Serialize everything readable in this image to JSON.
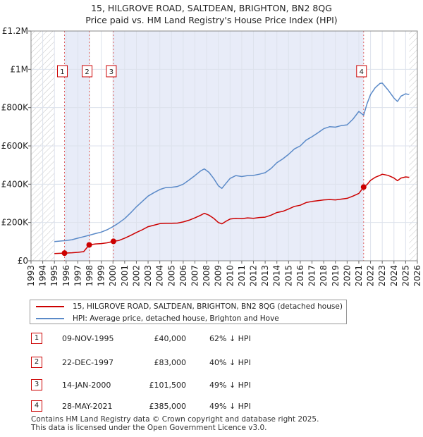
{
  "title": {
    "line1": "15, HILGROVE ROAD, SALTDEAN, BRIGHTON, BN2 8QG",
    "line2": "Price paid vs. HM Land Registry's House Price Index (HPI)"
  },
  "colors": {
    "price_line": "#cc0000",
    "hpi_line": "#5b8ac8",
    "shade": "#e8ecf8",
    "hatch": "#c0c0c0",
    "marker_line": "#e06060"
  },
  "chart_data": {
    "type": "line",
    "xlim": [
      1993,
      2026
    ],
    "ylim": [
      0,
      1200000
    ],
    "y_ticks": [
      {
        "value": 0,
        "label": "£0"
      },
      {
        "value": 200000,
        "label": "£200K"
      },
      {
        "value": 400000,
        "label": "£400K"
      },
      {
        "value": 600000,
        "label": "£600K"
      },
      {
        "value": 800000,
        "label": "£800K"
      },
      {
        "value": 1000000,
        "label": "£1M"
      },
      {
        "value": 1200000,
        "label": "£1.2M"
      }
    ],
    "x_ticks": [
      "1993",
      "1994",
      "1995",
      "1996",
      "1997",
      "1998",
      "1999",
      "2000",
      "2001",
      "2002",
      "2003",
      "2004",
      "2005",
      "2006",
      "2007",
      "2008",
      "2009",
      "2010",
      "2011",
      "2012",
      "2013",
      "2014",
      "2015",
      "2016",
      "2017",
      "2018",
      "2019",
      "2020",
      "2021",
      "2022",
      "2023",
      "2024",
      "2025",
      "2026"
    ],
    "data_start": 1995.0,
    "data_end": 2025.3,
    "series": [
      {
        "name": "15, HILGROVE ROAD, SALTDEAN, BRIGHTON, BN2 8QG (detached house)",
        "color": "#cc0000",
        "x": [
          1995.0,
          1995.5,
          1995.86,
          1996.5,
          1997.0,
          1997.5,
          1997.97,
          1998.5,
          1999.0,
          1999.5,
          2000.04,
          2000.5,
          2001.0,
          2001.5,
          2002.0,
          2002.5,
          2003.0,
          2003.5,
          2004.0,
          2004.5,
          2005.0,
          2005.5,
          2006.0,
          2006.5,
          2007.0,
          2007.5,
          2007.8,
          2008.2,
          2008.6,
          2009.0,
          2009.3,
          2009.7,
          2010.0,
          2010.5,
          2011.0,
          2011.5,
          2012.0,
          2012.5,
          2013.0,
          2013.5,
          2014.0,
          2014.5,
          2015.0,
          2015.5,
          2016.0,
          2016.5,
          2017.0,
          2017.5,
          2018.0,
          2018.5,
          2019.0,
          2019.5,
          2020.0,
          2020.5,
          2021.0,
          2021.41,
          2021.7,
          2022.0,
          2022.4,
          2022.8,
          2023.0,
          2023.5,
          2024.0,
          2024.3,
          2024.6,
          2025.0,
          2025.3
        ],
        "values": [
          38000,
          39000,
          40000,
          42000,
          44000,
          48000,
          83000,
          88000,
          90000,
          94000,
          101500,
          106000,
          118000,
          132000,
          148000,
          162000,
          178000,
          186000,
          194000,
          196000,
          196000,
          197000,
          203000,
          212000,
          224000,
          238000,
          248000,
          238000,
          222000,
          200000,
          193000,
          208000,
          218000,
          222000,
          220000,
          224000,
          222000,
          226000,
          228000,
          238000,
          252000,
          258000,
          270000,
          284000,
          290000,
          304000,
          310000,
          314000,
          318000,
          320000,
          318000,
          322000,
          326000,
          338000,
          352000,
          385000,
          398000,
          420000,
          436000,
          446000,
          452000,
          446000,
          432000,
          418000,
          432000,
          438000,
          436000
        ],
        "sales": [
          {
            "n": "1",
            "x": 1995.86,
            "value": 40000
          },
          {
            "n": "2",
            "x": 1997.97,
            "value": 83000
          },
          {
            "n": "3",
            "x": 2000.04,
            "value": 101500
          },
          {
            "n": "4",
            "x": 2021.41,
            "value": 385000
          }
        ]
      },
      {
        "name": "HPI: Average price, detached house, Brighton and Hove",
        "color": "#5b8ac8",
        "x": [
          1995.0,
          1995.5,
          1996.0,
          1996.5,
          1997.0,
          1997.5,
          1998.0,
          1998.5,
          1999.0,
          1999.5,
          2000.0,
          2000.5,
          2001.0,
          2001.5,
          2002.0,
          2002.5,
          2003.0,
          2003.5,
          2004.0,
          2004.5,
          2005.0,
          2005.5,
          2006.0,
          2006.5,
          2007.0,
          2007.5,
          2007.8,
          2008.2,
          2008.6,
          2009.0,
          2009.3,
          2009.7,
          2010.0,
          2010.5,
          2011.0,
          2011.5,
          2012.0,
          2012.5,
          2013.0,
          2013.5,
          2014.0,
          2014.5,
          2015.0,
          2015.5,
          2016.0,
          2016.5,
          2017.0,
          2017.5,
          2018.0,
          2018.5,
          2019.0,
          2019.5,
          2020.0,
          2020.5,
          2021.0,
          2021.41,
          2021.7,
          2022.0,
          2022.4,
          2022.8,
          2023.0,
          2023.5,
          2024.0,
          2024.3,
          2024.6,
          2025.0,
          2025.3
        ],
        "values": [
          100000,
          103000,
          106000,
          110000,
          118000,
          126000,
          134000,
          142000,
          150000,
          162000,
          178000,
          198000,
          220000,
          250000,
          282000,
          310000,
          338000,
          356000,
          372000,
          382000,
          384000,
          388000,
          400000,
          422000,
          445000,
          470000,
          480000,
          462000,
          430000,
          392000,
          378000,
          408000,
          430000,
          445000,
          440000,
          445000,
          446000,
          452000,
          460000,
          482000,
          512000,
          532000,
          556000,
          584000,
          600000,
          630000,
          648000,
          668000,
          690000,
          700000,
          698000,
          706000,
          710000,
          740000,
          780000,
          760000,
          820000,
          868000,
          904000,
          926000,
          928000,
          892000,
          850000,
          832000,
          860000,
          872000,
          868000
        ]
      }
    ]
  },
  "legend": {
    "price_label": "15, HILGROVE ROAD, SALTDEAN, BRIGHTON, BN2 8QG (detached house)",
    "hpi_label": "HPI: Average price, detached house, Brighton and Hove"
  },
  "sales_table": [
    {
      "n": "1",
      "date": "09-NOV-1995",
      "price": "£40,000",
      "hpi": "62% ↓ HPI"
    },
    {
      "n": "2",
      "date": "22-DEC-1997",
      "price": "£83,000",
      "hpi": "40% ↓ HPI"
    },
    {
      "n": "3",
      "date": "14-JAN-2000",
      "price": "£101,500",
      "hpi": "49% ↓ HPI"
    },
    {
      "n": "4",
      "date": "28-MAY-2021",
      "price": "£385,000",
      "hpi": "49% ↓ HPI"
    }
  ],
  "footer": {
    "line1": "Contains HM Land Registry data © Crown copyright and database right 2025.",
    "line2": "This data is licensed under the Open Government Licence v3.0."
  }
}
